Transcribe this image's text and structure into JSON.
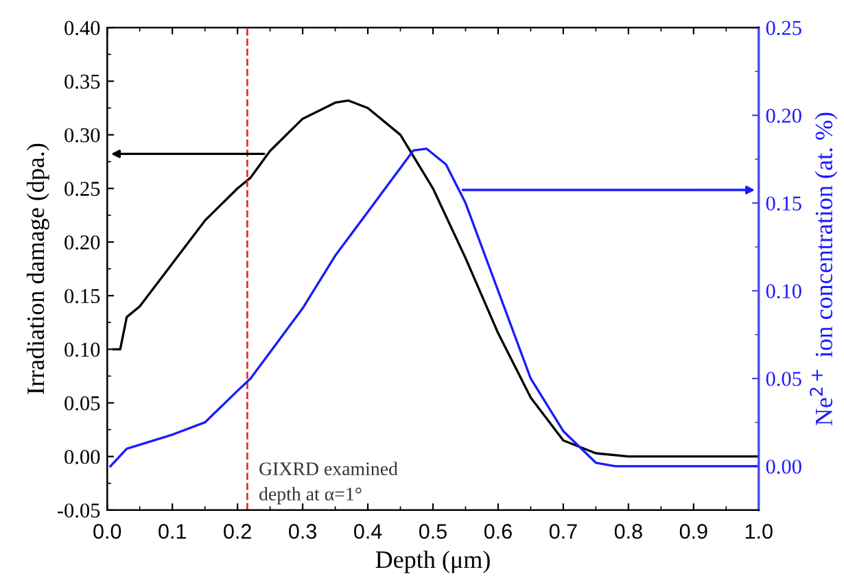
{
  "chart_data": {
    "type": "line",
    "xlabel": "Depth (μm)",
    "ylabel": "Irradiation damage (dpa.)",
    "y2label": "Ne$^{2+}$ ion concentration (at. %)",
    "series": [
      {
        "color": "#000000",
        "x": [
          0.01,
          0.02,
          0.03,
          0.05,
          0.1,
          0.15,
          0.2,
          0.22,
          0.25,
          0.3,
          0.35,
          0.37,
          0.4,
          0.45,
          0.5,
          0.55,
          0.6,
          0.65,
          0.7,
          0.75,
          0.8,
          1.0
        ],
        "values": [
          0.1,
          0.1,
          0.13,
          0.14,
          0.18,
          0.22,
          0.25,
          0.26,
          0.285,
          0.315,
          0.33,
          0.332,
          0.325,
          0.3,
          0.25,
          0.185,
          0.115,
          0.055,
          0.015,
          0.003,
          0.0,
          0.0
        ]
      },
      {
        "color": "#1a1aff",
        "axis": "y2",
        "x": [
          0.005,
          0.03,
          0.1,
          0.15,
          0.2,
          0.22,
          0.3,
          0.35,
          0.4,
          0.45,
          0.47,
          0.49,
          0.52,
          0.55,
          0.6,
          0.65,
          0.7,
          0.75,
          0.78,
          1.0
        ],
        "values": [
          0.0,
          0.01,
          0.018,
          0.025,
          0.043,
          0.05,
          0.09,
          0.12,
          0.145,
          0.17,
          0.18,
          0.181,
          0.172,
          0.15,
          0.1,
          0.05,
          0.02,
          0.002,
          0.0,
          0.0
        ]
      }
    ],
    "xlim": [
      0.0,
      1.0
    ],
    "xticks": [
      {
        "value": 0.0,
        "label": "0.0"
      },
      0.1,
      0.2,
      0.3,
      0.4,
      0.5,
      0.6,
      0.7,
      0.8,
      0.9,
      {
        "value": 1.0,
        "label": "1.0"
      }
    ],
    "ylim": [
      -0.05,
      0.4
    ],
    "yticks": [
      -0.05,
      {
        "value": 0.0,
        "label": "0.00"
      },
      0.05,
      {
        "value": 0.1,
        "label": "0.10"
      },
      0.15,
      {
        "value": 0.2,
        "label": "0.20"
      },
      0.25,
      {
        "value": 0.3,
        "label": "0.30"
      },
      0.35,
      {
        "value": 0.4,
        "label": "0.40"
      }
    ],
    "y2lim": [
      -0.025,
      0.25
    ],
    "y2ticks": [
      {
        "value": 0.0,
        "label": "0.00"
      },
      0.05,
      {
        "value": 0.1,
        "label": "0.10"
      },
      0.15,
      {
        "value": 0.2,
        "label": "0.20"
      },
      0.25
    ],
    "ref_lines": [
      {
        "axis": "x",
        "value": 0.215,
        "color": "#e03030",
        "line_style": "dashed"
      }
    ],
    "annotations": [
      {
        "text": "GIXRD examined\ndepth at α=1°",
        "x": 0.215,
        "y": -0.005
      }
    ],
    "grid": false,
    "legend": false,
    "marker": "none",
    "line_style": "solid"
  }
}
